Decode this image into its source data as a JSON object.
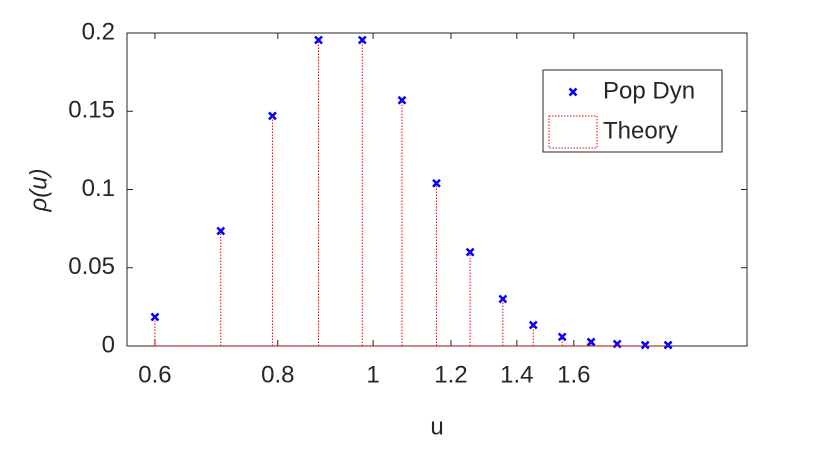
{
  "chart_data": {
    "type": "stem",
    "xlabel": "u",
    "ylabel": "ρ(u)",
    "xscale": "log",
    "xlim": [
      0.562,
      2.4
    ],
    "ylim": [
      0,
      0.2
    ],
    "xticks": [
      0.6,
      0.8,
      1,
      1.2,
      1.4,
      1.6
    ],
    "yticks": [
      0,
      0.05,
      0.1,
      0.15,
      0.2
    ],
    "legend": "upper right",
    "x": [
      0.6,
      0.7,
      0.79,
      0.88,
      0.975,
      1.07,
      1.16,
      1.255,
      1.355,
      1.455,
      1.557,
      1.666,
      1.771,
      1.891,
      1.995
    ],
    "series": [
      {
        "name": "Pop Dyn",
        "color": "#0000ff",
        "marker": "x",
        "values": [
          0.0185,
          0.0735,
          0.147,
          0.1955,
          0.1955,
          0.157,
          0.104,
          0.06,
          0.03,
          0.0134,
          0.0058,
          0.0026,
          0.0013,
          0.0006,
          0.0006
        ]
      },
      {
        "name": "Theory",
        "color": "#ff0000",
        "marker": "stem",
        "values": [
          0.0185,
          0.0735,
          0.147,
          0.1955,
          0.1955,
          0.157,
          0.104,
          0.06,
          0.03,
          0.0134,
          0.0058,
          0.0026,
          0.0013,
          0.0006,
          0.0006
        ]
      }
    ]
  }
}
